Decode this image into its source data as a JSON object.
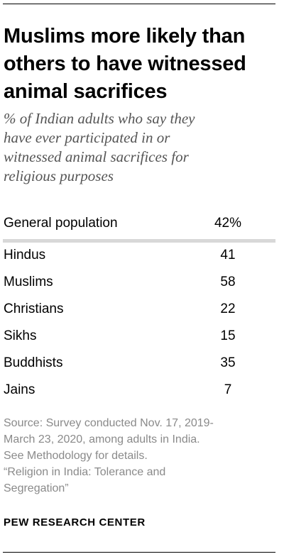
{
  "title": "Muslims more likely than others to have witnessed animal sacrifices",
  "title_lines": [
    "Muslims more likely than",
    "others to have witnessed",
    "animal sacrifices"
  ],
  "subtitle_lines": [
    "% of Indian adults who say they",
    "have ever participated in or",
    "witnessed animal sacrifices for",
    "religious purposes"
  ],
  "chart_data": {
    "type": "table",
    "title": "Muslims more likely than others to have witnessed animal sacrifices",
    "subtitle": "% of Indian adults who say they have ever participated in or witnessed animal sacrifices for religious purposes",
    "categories": [
      "General population",
      "Hindus",
      "Muslims",
      "Christians",
      "Sikhs",
      "Buddhists",
      "Jains"
    ],
    "values": [
      42,
      41,
      58,
      22,
      15,
      35,
      7
    ],
    "value_labels": [
      "42%",
      "41",
      "58",
      "22",
      "15",
      "35",
      "7"
    ]
  },
  "source_lines": [
    "Source: Survey conducted Nov. 17, 2019-",
    "March 23, 2020, among adults in India.",
    "See Methodology for details.",
    "“Religion in India: Tolerance and",
    "Segregation”"
  ],
  "brand": "PEW RESEARCH CENTER",
  "colors": {
    "divider": "#d8d8d8",
    "subtitle": "#555555",
    "source": "#8a8a8a"
  }
}
